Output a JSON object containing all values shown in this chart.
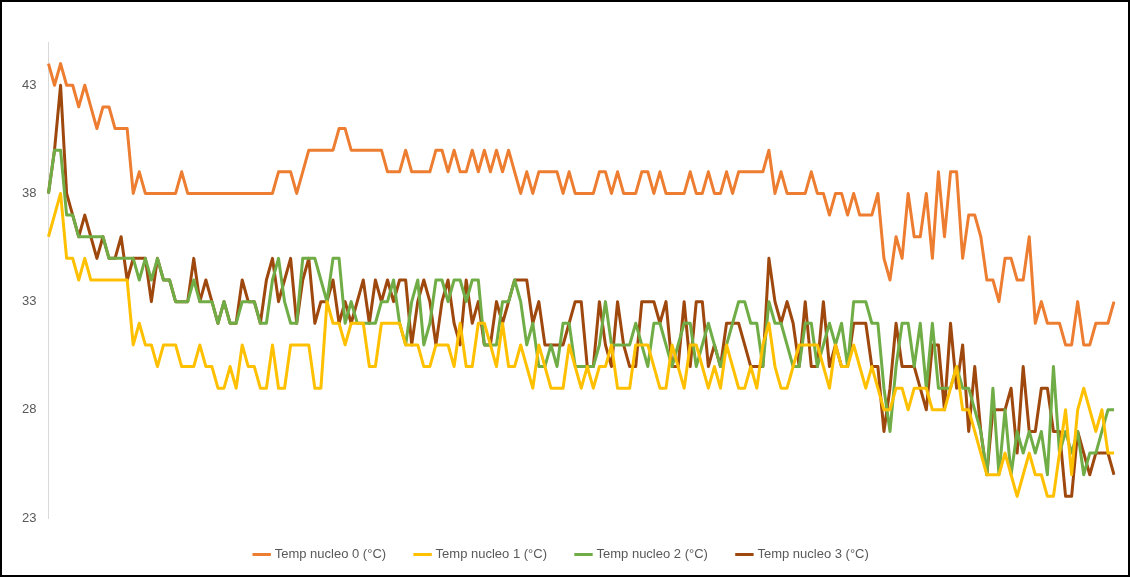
{
  "chart_data": {
    "type": "line",
    "categories": [
      null,
      null,
      null,
      null,
      null,
      null,
      null,
      null,
      null,
      null,
      null,
      null,
      null,
      null,
      null,
      null,
      null,
      null,
      null,
      null,
      null,
      null,
      null,
      null,
      null,
      null,
      null,
      null,
      null,
      null,
      null,
      null,
      null,
      null,
      null,
      null,
      null,
      null,
      null,
      null,
      null,
      null,
      null,
      null,
      null,
      null,
      null,
      null,
      null,
      null,
      null,
      null,
      null,
      null,
      null,
      null,
      null,
      null,
      null,
      null,
      null,
      null,
      null,
      null,
      null,
      null,
      null,
      null,
      null,
      null,
      null,
      null,
      null,
      null,
      null,
      null,
      null,
      null,
      null,
      null,
      null,
      null,
      null,
      null,
      null,
      null,
      null,
      null,
      null,
      null,
      null,
      null,
      null,
      null,
      null,
      null,
      null,
      null,
      null,
      null,
      null,
      null,
      null,
      null,
      null,
      null,
      null,
      null,
      null,
      null,
      null,
      null,
      null,
      null,
      null,
      null,
      null,
      null,
      null,
      null,
      null,
      null,
      null,
      null,
      null,
      null,
      null,
      null,
      null,
      null,
      null,
      null,
      null,
      null,
      null,
      null,
      null,
      null,
      null,
      null,
      null,
      null,
      null,
      null,
      null,
      null,
      null,
      null,
      null,
      null,
      null,
      null,
      null,
      null,
      null,
      null,
      null,
      null,
      null,
      null,
      null,
      null,
      null,
      null,
      null,
      null,
      null,
      null,
      null,
      null,
      null,
      null,
      null,
      null,
      null,
      null,
      null
    ],
    "series": [
      {
        "name": "Temp nucleo 0 (°C)",
        "color": "#ed7d31",
        "values": [
          44,
          43,
          44,
          43,
          43,
          42,
          43,
          42,
          41,
          42,
          42,
          41,
          41,
          41,
          38,
          39,
          38,
          38,
          38,
          38,
          38,
          38,
          39,
          38,
          38,
          38,
          38,
          38,
          38,
          38,
          38,
          38,
          38,
          38,
          38,
          38,
          38,
          38,
          39,
          39,
          39,
          38,
          39,
          40,
          40,
          40,
          40,
          40,
          41,
          41,
          40,
          40,
          40,
          40,
          40,
          40,
          39,
          39,
          39,
          40,
          39,
          39,
          39,
          39,
          40,
          40,
          39,
          40,
          39,
          39,
          40,
          39,
          40,
          39,
          40,
          39,
          40,
          39,
          38,
          39,
          38,
          39,
          39,
          39,
          39,
          38,
          39,
          38,
          38,
          38,
          38,
          39,
          39,
          38,
          39,
          38,
          38,
          38,
          39,
          39,
          38,
          39,
          38,
          38,
          38,
          38,
          39,
          38,
          38,
          39,
          38,
          38,
          39,
          38,
          39,
          39,
          39,
          39,
          39,
          40,
          38,
          39,
          38,
          38,
          38,
          38,
          39,
          38,
          38,
          37,
          38,
          38,
          37,
          38,
          37,
          37,
          37,
          38,
          35,
          34,
          36,
          35,
          38,
          36,
          36,
          38,
          35,
          39,
          36,
          39,
          39,
          35,
          37,
          37,
          36,
          34,
          34,
          33,
          35,
          35,
          34,
          34,
          36,
          32,
          33,
          32,
          32,
          32,
          31,
          31,
          33,
          31,
          31,
          32,
          32,
          32,
          33
        ]
      },
      {
        "name": "Temp nucleo 1 (°C)",
        "color": "#ffc000",
        "values": [
          36,
          37,
          38,
          35,
          35,
          34,
          35,
          34,
          34,
          34,
          34,
          34,
          34,
          34,
          31,
          32,
          31,
          31,
          30,
          31,
          31,
          31,
          30,
          30,
          30,
          31,
          30,
          30,
          29,
          29,
          30,
          29,
          31,
          30,
          30,
          29,
          29,
          31,
          29,
          29,
          31,
          31,
          31,
          31,
          29,
          29,
          33,
          32,
          32,
          31,
          32,
          32,
          32,
          30,
          30,
          32,
          32,
          32,
          32,
          31,
          31,
          31,
          30,
          30,
          31,
          31,
          31,
          30,
          32,
          30,
          30,
          32,
          32,
          31,
          30,
          32,
          30,
          30,
          31,
          30,
          29,
          31,
          30,
          29,
          29,
          29,
          31,
          30,
          29,
          30,
          29,
          30,
          30,
          31,
          29,
          29,
          29,
          31,
          31,
          31,
          30,
          29,
          29,
          31,
          30,
          29,
          31,
          31,
          30,
          29,
          30,
          29,
          31,
          30,
          29,
          29,
          30,
          29,
          31,
          32,
          30,
          29,
          29,
          30,
          31,
          31,
          31,
          31,
          30,
          29,
          31,
          30,
          30,
          31,
          30,
          29,
          30,
          29,
          28,
          28,
          29,
          29,
          28,
          29,
          29,
          29,
          28,
          28,
          28,
          29,
          30,
          28,
          28,
          27,
          26,
          25,
          25,
          25,
          26,
          25,
          24,
          25,
          26,
          25,
          25,
          24,
          24,
          26,
          28,
          25,
          28,
          29,
          28,
          27,
          28,
          26,
          26
        ]
      },
      {
        "name": "Temp nucleo 2 (°C)",
        "color": "#70ad47",
        "values": [
          38,
          40,
          40,
          37,
          37,
          36,
          36,
          36,
          36,
          36,
          35,
          35,
          35,
          35,
          35,
          34,
          35,
          34,
          35,
          34,
          34,
          33,
          33,
          33,
          34,
          33,
          33,
          33,
          32,
          33,
          32,
          32,
          33,
          33,
          33,
          32,
          32,
          34,
          35,
          33,
          32,
          32,
          35,
          35,
          35,
          34,
          33,
          35,
          35,
          32,
          33,
          32,
          32,
          32,
          32,
          33,
          33,
          34,
          32,
          31,
          33,
          34,
          31,
          32,
          34,
          34,
          33,
          34,
          34,
          33,
          34,
          34,
          31,
          31,
          31,
          33,
          33,
          34,
          33,
          31,
          32,
          30,
          30,
          31,
          30,
          32,
          32,
          30,
          30,
          30,
          30,
          31,
          33,
          31,
          31,
          31,
          31,
          32,
          31,
          30,
          32,
          32,
          31,
          30,
          31,
          32,
          32,
          30,
          31,
          32,
          31,
          30,
          31,
          32,
          33,
          33,
          32,
          32,
          30,
          33,
          32,
          32,
          31,
          30,
          30,
          32,
          32,
          30,
          31,
          32,
          31,
          32,
          30,
          33,
          33,
          33,
          32,
          32,
          29,
          27,
          30,
          32,
          32,
          30,
          32,
          29,
          32,
          29,
          29,
          29,
          30,
          29,
          29,
          28,
          27,
          25,
          29,
          25,
          28,
          25,
          27,
          26,
          27,
          26,
          27,
          25,
          30,
          26,
          27,
          26,
          27,
          25,
          26,
          26,
          27,
          28,
          28
        ]
      },
      {
        "name": "Temp nucleo 3 (°C)",
        "color": "#9e480e",
        "values": [
          38,
          40,
          43,
          38,
          37,
          36,
          37,
          36,
          35,
          36,
          35,
          35,
          36,
          34,
          35,
          35,
          35,
          33,
          35,
          34,
          34,
          33,
          33,
          33,
          35,
          33,
          34,
          33,
          32,
          33,
          32,
          32,
          34,
          33,
          33,
          32,
          34,
          35,
          33,
          34,
          35,
          32,
          34,
          35,
          32,
          33,
          33,
          34,
          32,
          33,
          32,
          33,
          34,
          32,
          34,
          33,
          34,
          33,
          34,
          34,
          31,
          33,
          34,
          33,
          31,
          33,
          34,
          32,
          31,
          34,
          32,
          33,
          31,
          31,
          33,
          32,
          33,
          34,
          34,
          34,
          32,
          33,
          31,
          31,
          31,
          31,
          32,
          33,
          33,
          30,
          30,
          33,
          31,
          30,
          33,
          31,
          30,
          30,
          33,
          33,
          33,
          32,
          33,
          30,
          30,
          33,
          30,
          33,
          33,
          30,
          31,
          30,
          32,
          32,
          32,
          31,
          30,
          30,
          30,
          35,
          33,
          32,
          33,
          32,
          30,
          33,
          30,
          30,
          33,
          30,
          31,
          30,
          30,
          32,
          32,
          32,
          30,
          30,
          27,
          29,
          32,
          30,
          30,
          30,
          29,
          28,
          31,
          31,
          28,
          32,
          29,
          31,
          27,
          30,
          27,
          25,
          28,
          28,
          28,
          29,
          26,
          30,
          27,
          27,
          29,
          29,
          27,
          27,
          24,
          24,
          27,
          26,
          25,
          26,
          26,
          26,
          25
        ]
      }
    ],
    "ylim": [
      23,
      45
    ],
    "yticks": [
      23,
      28,
      33,
      38,
      43
    ],
    "tick_labels": "y",
    "legend": "bottom",
    "marker": "none",
    "line_style": "solid",
    "grid": false
  }
}
